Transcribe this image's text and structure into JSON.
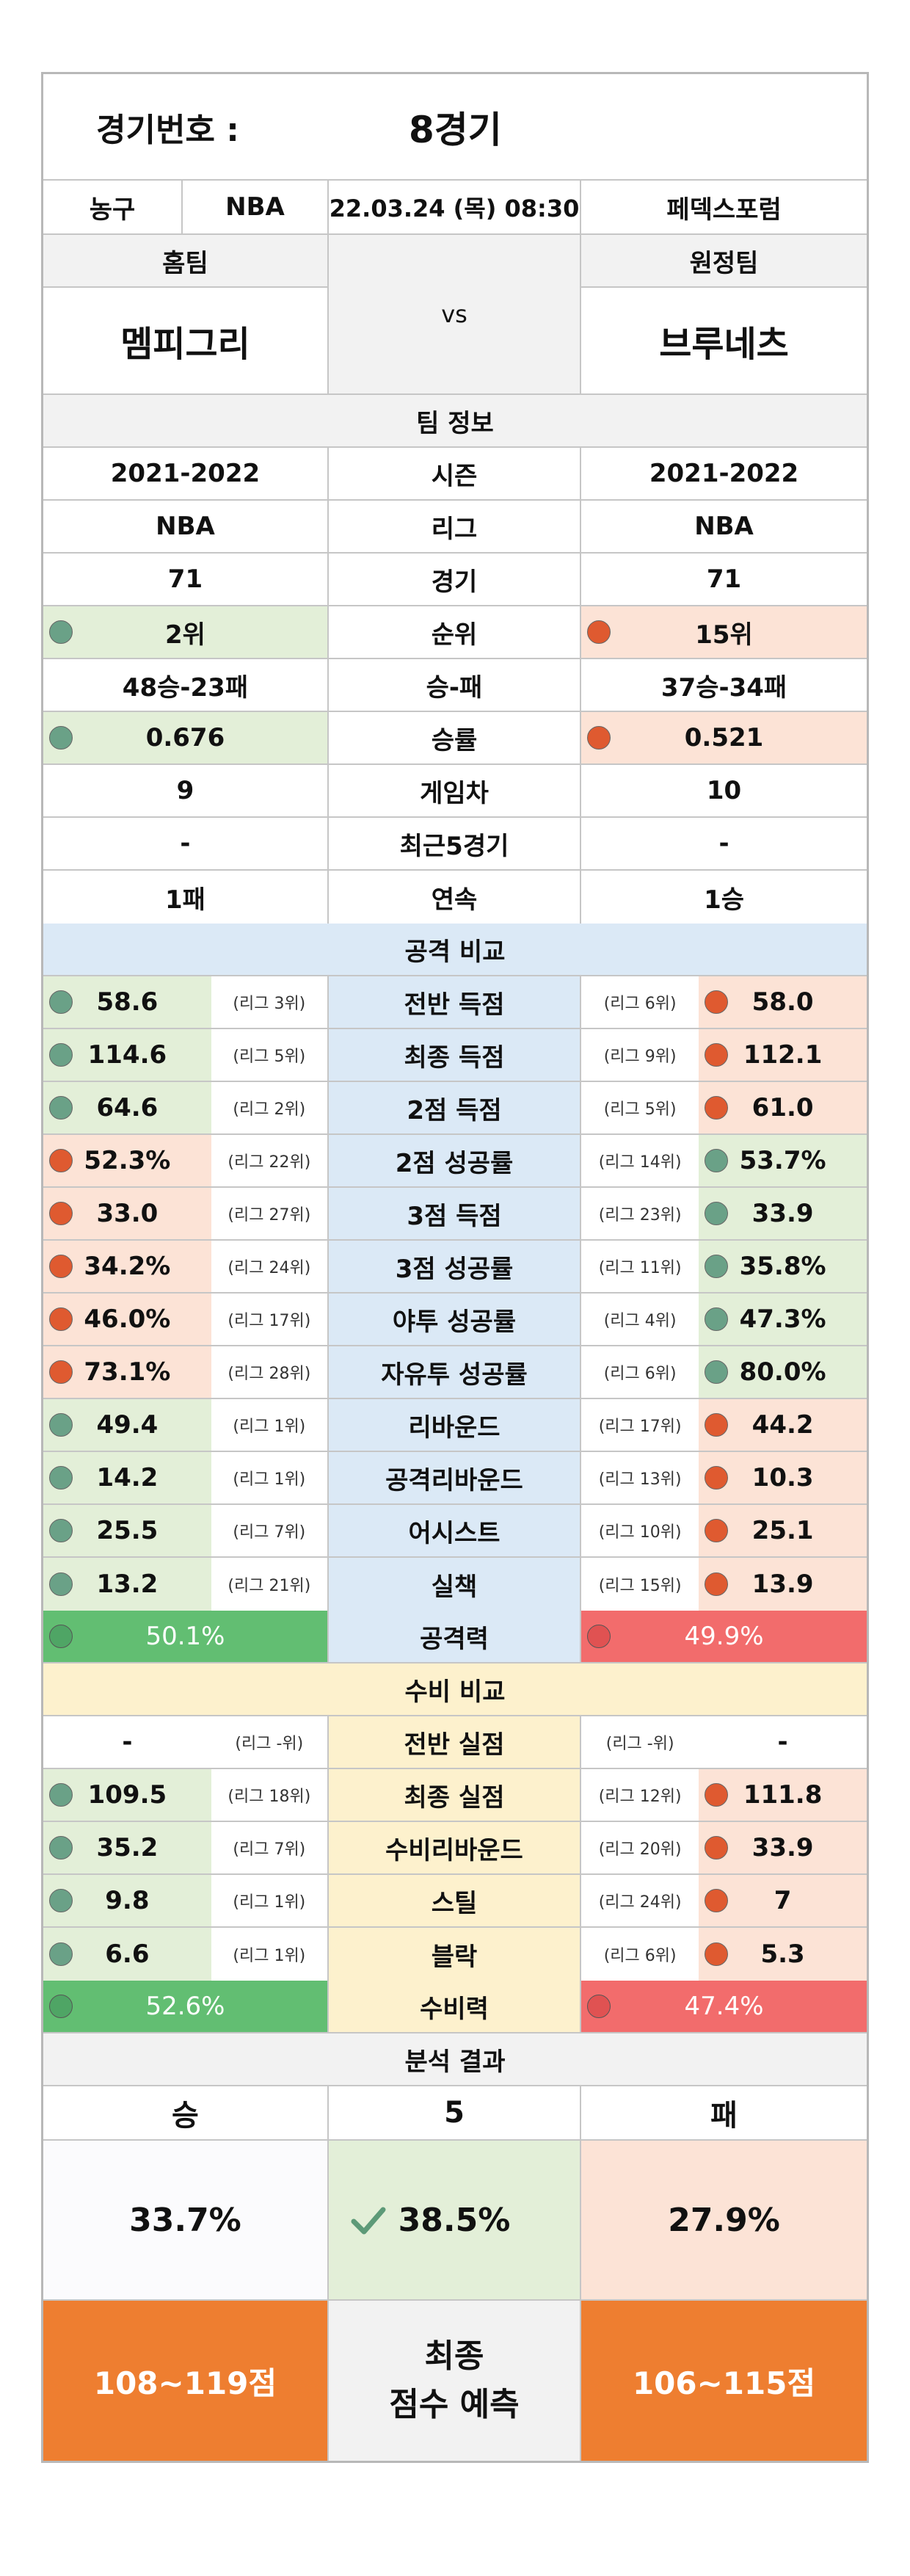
{
  "header": {
    "label": "경기번호 :",
    "value": "8경기"
  },
  "match": {
    "sport": "농구",
    "league": "NBA",
    "datetime": "22.03.24 (목) 08:30",
    "venue": "페덱스포럼"
  },
  "teams": {
    "home_label": "홈팀",
    "away_label": "원정팀",
    "home": "멤피그리",
    "away": "브루네츠",
    "vs": "vs"
  },
  "team_info": {
    "title": "팀 정보",
    "rows": [
      {
        "label": "시즌",
        "home": "2021-2022",
        "away": "2021-2022"
      },
      {
        "label": "리그",
        "home": "NBA",
        "away": "NBA"
      },
      {
        "label": "경기",
        "home": "71",
        "away": "71"
      },
      {
        "label": "순위",
        "home": "2위",
        "away": "15위",
        "home_mark": "good",
        "away_mark": "bad"
      },
      {
        "label": "승-패",
        "home": "48승-23패",
        "away": "37승-34패"
      },
      {
        "label": "승률",
        "home": "0.676",
        "away": "0.521",
        "home_mark": "good",
        "away_mark": "bad"
      },
      {
        "label": "게임차",
        "home": "9",
        "away": "10"
      },
      {
        "label": "최근5경기",
        "home": "-",
        "away": "-"
      },
      {
        "label": "연속",
        "home": "1패",
        "away": "1승"
      }
    ]
  },
  "attack": {
    "title": "공격 비교",
    "rows": [
      {
        "label": "전반 득점",
        "home": "58.6",
        "home_rank": "(리그 3위)",
        "away": "58.0",
        "away_rank": "(리그 6위)",
        "home_mark": "good"
      },
      {
        "label": "최종 득점",
        "home": "114.6",
        "home_rank": "(리그 5위)",
        "away": "112.1",
        "away_rank": "(리그 9위)",
        "home_mark": "good"
      },
      {
        "label": "2점 득점",
        "home": "64.6",
        "home_rank": "(리그 2위)",
        "away": "61.0",
        "away_rank": "(리그 5위)",
        "home_mark": "good"
      },
      {
        "label": "2점 성공률",
        "home": "52.3%",
        "home_rank": "(리그 22위)",
        "away": "53.7%",
        "away_rank": "(리그 14위)",
        "home_mark": "bad"
      },
      {
        "label": "3점 득점",
        "home": "33.0",
        "home_rank": "(리그 27위)",
        "away": "33.9",
        "away_rank": "(리그 23위)",
        "home_mark": "bad"
      },
      {
        "label": "3점 성공률",
        "home": "34.2%",
        "home_rank": "(리그 24위)",
        "away": "35.8%",
        "away_rank": "(리그 11위)",
        "home_mark": "bad"
      },
      {
        "label": "야투 성공률",
        "home": "46.0%",
        "home_rank": "(리그 17위)",
        "away": "47.3%",
        "away_rank": "(리그 4위)",
        "home_mark": "bad"
      },
      {
        "label": "자유투 성공률",
        "home": "73.1%",
        "home_rank": "(리그 28위)",
        "away": "80.0%",
        "away_rank": "(리그 6위)",
        "home_mark": "bad"
      },
      {
        "label": "리바운드",
        "home": "49.4",
        "home_rank": "(리그 1위)",
        "away": "44.2",
        "away_rank": "(리그 17위)",
        "home_mark": "good"
      },
      {
        "label": "공격리바운드",
        "home": "14.2",
        "home_rank": "(리그 1위)",
        "away": "10.3",
        "away_rank": "(리그 13위)",
        "home_mark": "good"
      },
      {
        "label": "어시스트",
        "home": "25.5",
        "home_rank": "(리그 7위)",
        "away": "25.1",
        "away_rank": "(리그 10위)",
        "home_mark": "good"
      },
      {
        "label": "실책",
        "home": "13.2",
        "home_rank": "(리그 21위)",
        "away": "13.9",
        "away_rank": "(리그 15위)",
        "home_mark": "good"
      }
    ],
    "power": {
      "label": "공격력",
      "home": "50.1%",
      "away": "49.9%"
    }
  },
  "defense": {
    "title": "수비 비교",
    "rows": [
      {
        "label": "전반 실점",
        "home": "-",
        "home_rank": "(리그 -위)",
        "away": "-",
        "away_rank": "(리그 -위)",
        "home_mark": "none"
      },
      {
        "label": "최종 실점",
        "home": "109.5",
        "home_rank": "(리그 18위)",
        "away": "111.8",
        "away_rank": "(리그 12위)",
        "home_mark": "good"
      },
      {
        "label": "수비리바운드",
        "home": "35.2",
        "home_rank": "(리그 7위)",
        "away": "33.9",
        "away_rank": "(리그 20위)",
        "home_mark": "good"
      },
      {
        "label": "스틸",
        "home": "9.8",
        "home_rank": "(리그 1위)",
        "away": "7",
        "away_rank": "(리그 24위)",
        "home_mark": "good"
      },
      {
        "label": "블락",
        "home": "6.6",
        "home_rank": "(리그 1위)",
        "away": "5.3",
        "away_rank": "(리그 6위)",
        "home_mark": "good"
      }
    ],
    "power": {
      "label": "수비력",
      "home": "52.6%",
      "away": "47.4%"
    }
  },
  "result": {
    "title": "분석 결과",
    "win_label": "승",
    "draw_label": "5",
    "loss_label": "패",
    "win_pct": "33.7%",
    "draw_pct": "38.5%",
    "loss_pct": "27.9%",
    "home_score": "108~119점",
    "prediction_line1": "최종",
    "prediction_line2": "점수 예측",
    "away_score": "106~115점"
  },
  "colors": {
    "good": "#6aa187",
    "bad": "#df5a30",
    "attack_bg": "#dbe9f6",
    "defense_bg": "#fdf1cd",
    "orange": "#ee7e30"
  }
}
